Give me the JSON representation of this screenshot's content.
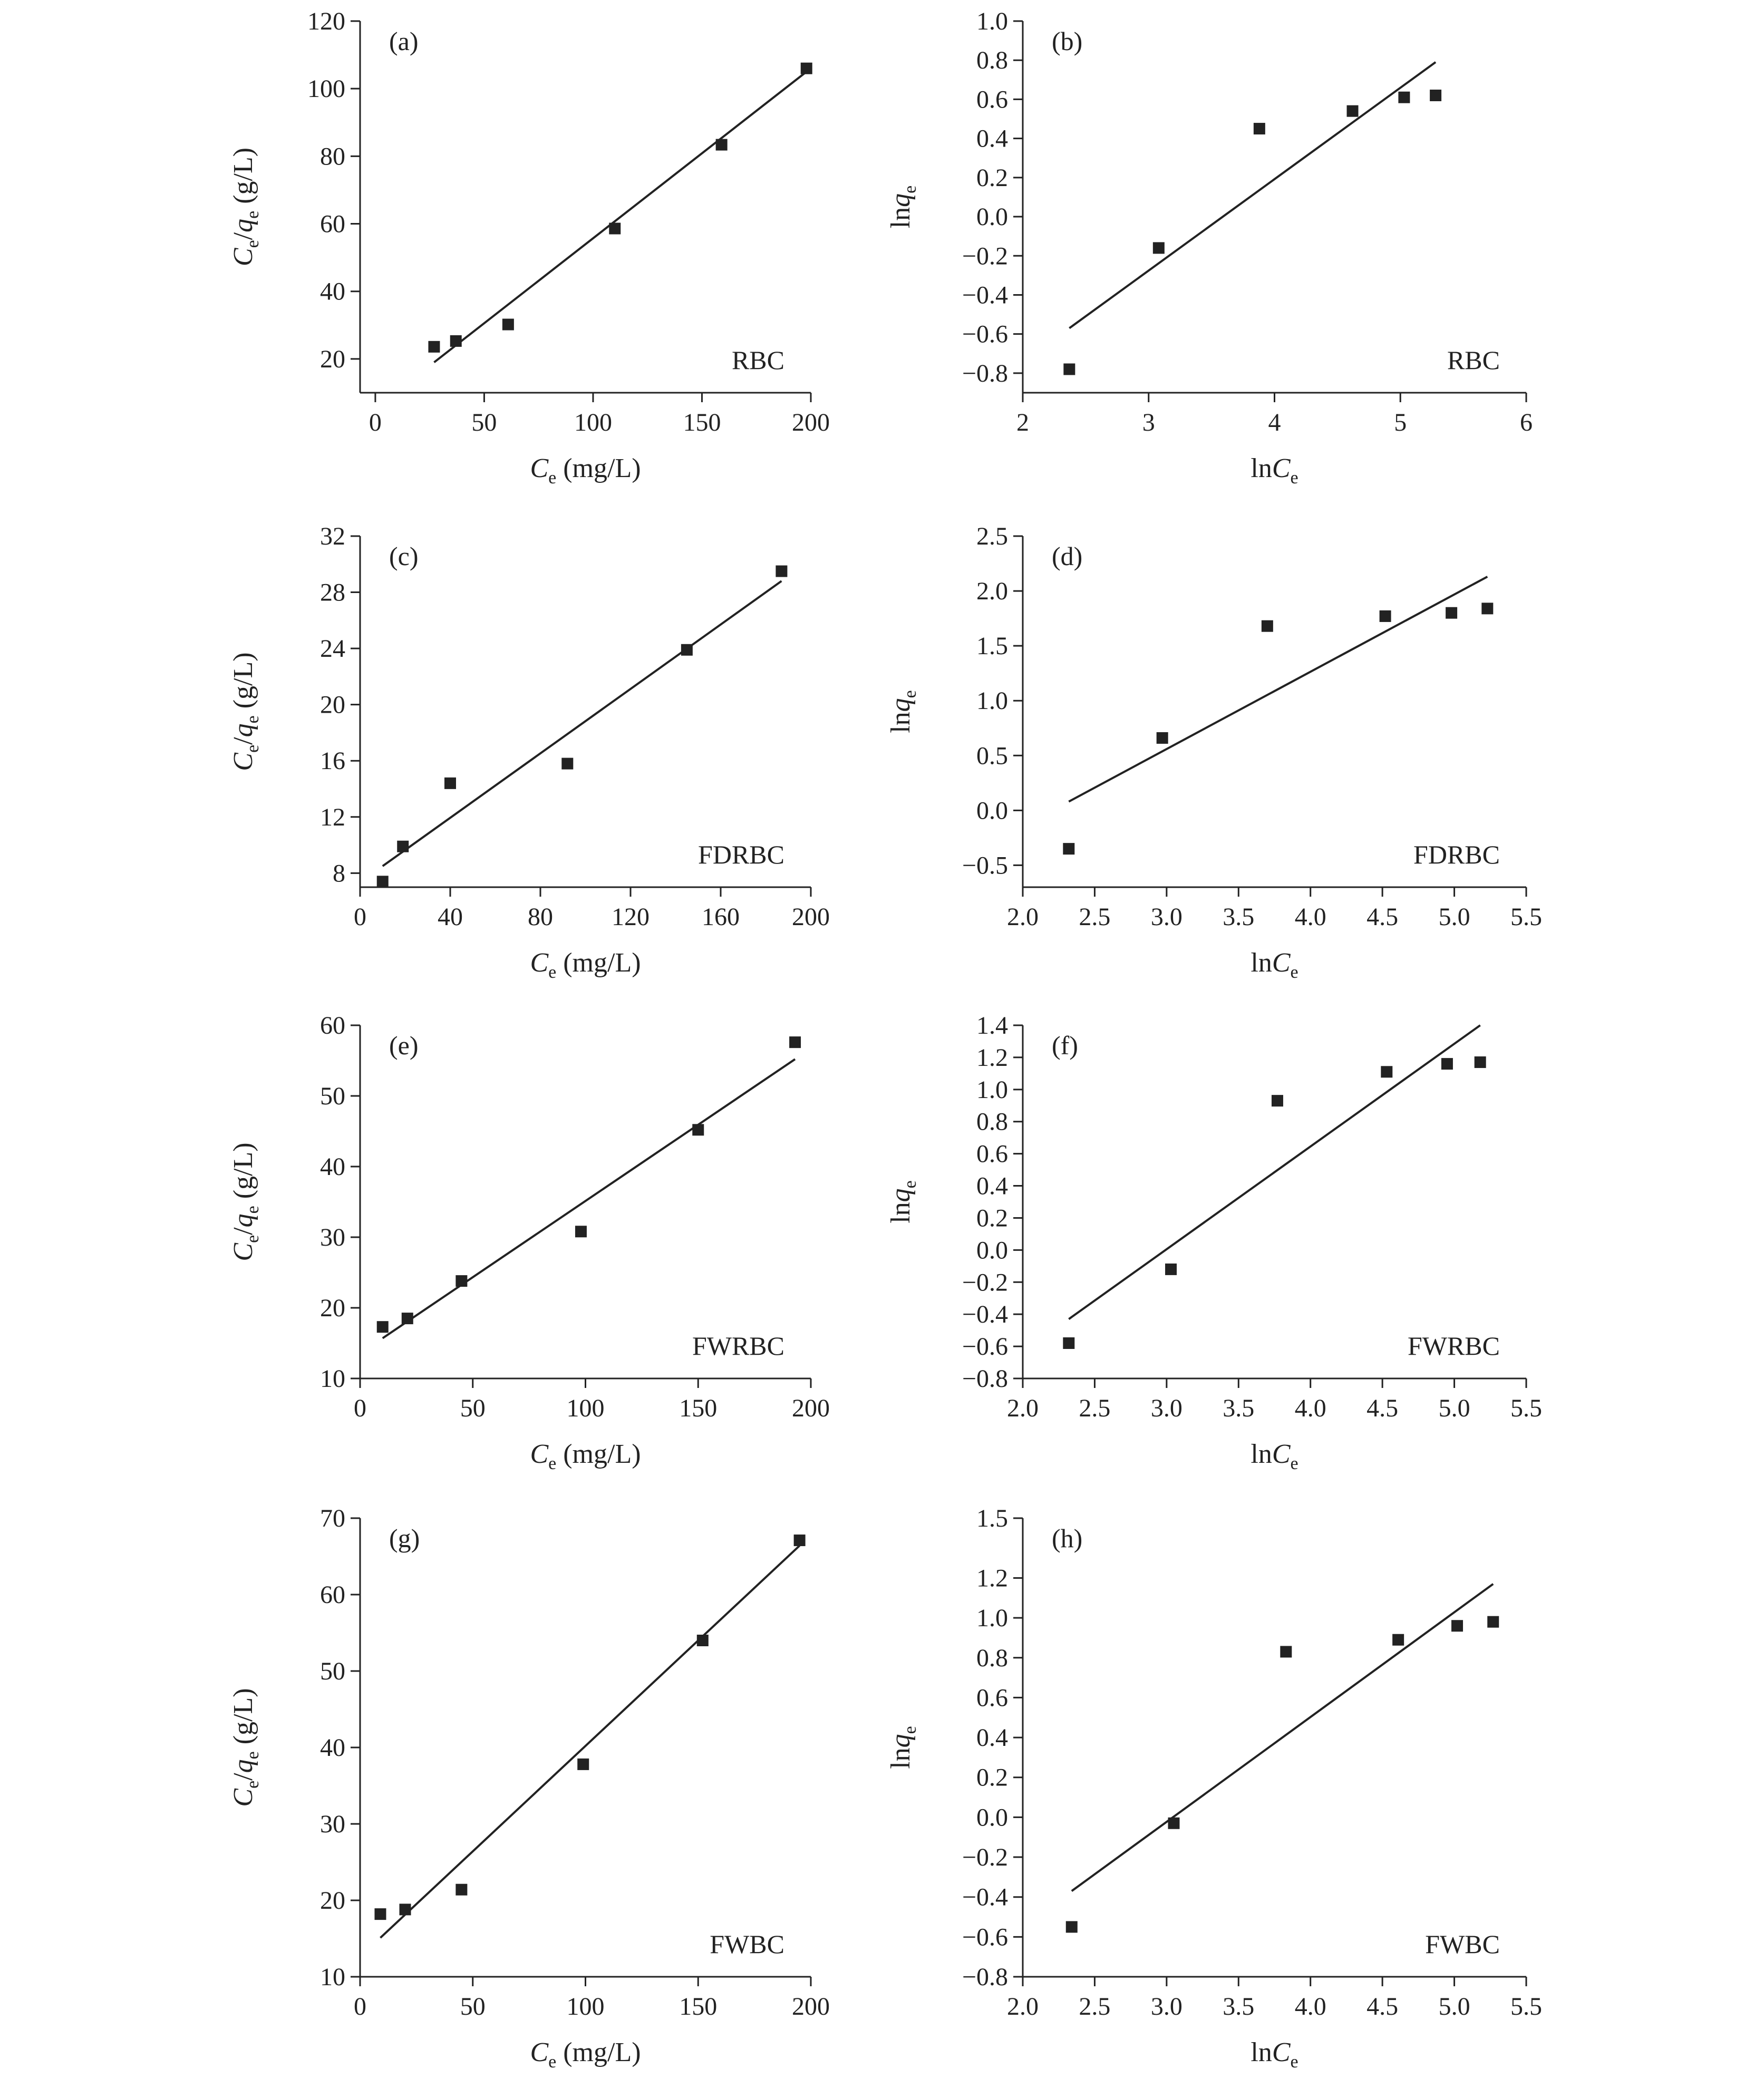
{
  "chart_data": [
    {
      "id": "a",
      "type": "scatter",
      "panel_label": "(a)",
      "sample": "RBC",
      "xlabel": {
        "main": "C",
        "sub": "e",
        "unit": " (mg/L)"
      },
      "ylabel": {
        "main1": "C",
        "sub1": "e",
        "sep": "/",
        "main2": "q",
        "sub2": "e",
        "unit": " (g/L)"
      },
      "xlim": [
        -7,
        200
      ],
      "ylim": [
        10,
        120
      ],
      "xticks": [
        0,
        50,
        100,
        150,
        200
      ],
      "yticks": [
        20,
        40,
        60,
        80,
        100,
        120
      ],
      "tick_decimals": 0,
      "points": [
        [
          27,
          23.6
        ],
        [
          37,
          25.3
        ],
        [
          61,
          30.2
        ],
        [
          110,
          58.6
        ],
        [
          159,
          83.4
        ],
        [
          198,
          106
        ]
      ],
      "fit": [
        [
          27,
          19
        ],
        [
          198,
          105
        ]
      ]
    },
    {
      "id": "b",
      "type": "scatter",
      "panel_label": "(b)",
      "sample": "RBC",
      "xlabel": {
        "main": "ln",
        "main_italic": "C",
        "sub": "e",
        "unit": ""
      },
      "ylabel": {
        "main": "ln",
        "main_italic": "q",
        "sub": "e"
      },
      "xlim": [
        2,
        6
      ],
      "ylim": [
        -0.9,
        1.0
      ],
      "xticks": [
        2,
        3,
        4,
        5,
        6
      ],
      "yticks": [
        -0.8,
        -0.6,
        -0.4,
        -0.2,
        0.0,
        0.2,
        0.4,
        0.6,
        0.8,
        1.0
      ],
      "tick_decimals": 1,
      "x_tick_decimals": 0,
      "points": [
        [
          2.37,
          -0.78
        ],
        [
          3.08,
          -0.16
        ],
        [
          3.88,
          0.45
        ],
        [
          4.62,
          0.54
        ],
        [
          5.03,
          0.61
        ],
        [
          5.28,
          0.62
        ]
      ],
      "fit": [
        [
          2.37,
          -0.57
        ],
        [
          5.28,
          0.79
        ]
      ]
    },
    {
      "id": "c",
      "type": "scatter",
      "panel_label": "(c)",
      "sample": "FDRBC",
      "xlabel": {
        "main": "C",
        "sub": "e",
        "unit": " (mg/L)"
      },
      "ylabel": {
        "main1": "C",
        "sub1": "e",
        "sep": "/",
        "main2": "q",
        "sub2": "e",
        "unit": " (g/L)"
      },
      "xlim": [
        0,
        200
      ],
      "ylim": [
        7,
        32
      ],
      "xticks": [
        0,
        40,
        80,
        120,
        160,
        200
      ],
      "yticks": [
        8,
        12,
        16,
        20,
        24,
        28,
        32
      ],
      "tick_decimals": 0,
      "points": [
        [
          10,
          7.4
        ],
        [
          19,
          9.9
        ],
        [
          40,
          14.4
        ],
        [
          92,
          15.8
        ],
        [
          145,
          23.9
        ],
        [
          187,
          29.5
        ]
      ],
      "fit": [
        [
          10,
          8.5
        ],
        [
          187,
          28.8
        ]
      ]
    },
    {
      "id": "d",
      "type": "scatter",
      "panel_label": "(d)",
      "sample": "FDRBC",
      "xlabel": {
        "main": "ln",
        "main_italic": "C",
        "sub": "e",
        "unit": ""
      },
      "ylabel": {
        "main": "ln",
        "main_italic": "q",
        "sub": "e"
      },
      "xlim": [
        2.0,
        5.5
      ],
      "ylim": [
        -0.7,
        2.5
      ],
      "xticks": [
        2.0,
        2.5,
        3.0,
        3.5,
        4.0,
        4.5,
        5.0,
        5.5
      ],
      "yticks": [
        -0.5,
        0.0,
        0.5,
        1.0,
        1.5,
        2.0,
        2.5
      ],
      "tick_decimals": 1,
      "points": [
        [
          2.32,
          -0.35
        ],
        [
          2.97,
          0.66
        ],
        [
          3.7,
          1.68
        ],
        [
          4.52,
          1.77
        ],
        [
          4.98,
          1.8
        ],
        [
          5.23,
          1.84
        ]
      ],
      "fit": [
        [
          2.32,
          0.08
        ],
        [
          5.23,
          2.13
        ]
      ]
    },
    {
      "id": "e",
      "type": "scatter",
      "panel_label": "(e)",
      "sample": "FWRBC",
      "xlabel": {
        "main": "C",
        "sub": "e",
        "unit": " (mg/L)"
      },
      "ylabel": {
        "main1": "C",
        "sub1": "e",
        "sep": "/",
        "main2": "q",
        "sub2": "e",
        "unit": " (g/L)"
      },
      "xlim": [
        0,
        200
      ],
      "ylim": [
        10,
        60
      ],
      "xticks": [
        0,
        50,
        100,
        150,
        200
      ],
      "yticks": [
        10,
        20,
        30,
        40,
        50,
        60
      ],
      "tick_decimals": 0,
      "points": [
        [
          10,
          17.3
        ],
        [
          21,
          18.5
        ],
        [
          45,
          23.8
        ],
        [
          98,
          30.8
        ],
        [
          150,
          45.2
        ],
        [
          193,
          57.6
        ]
      ],
      "fit": [
        [
          10,
          15.7
        ],
        [
          193,
          55.2
        ]
      ]
    },
    {
      "id": "f",
      "type": "scatter",
      "panel_label": "(f)",
      "sample": "FWRBC",
      "xlabel": {
        "main": "ln",
        "main_italic": "C",
        "sub": "e",
        "unit": ""
      },
      "ylabel": {
        "main": "ln",
        "main_italic": "q",
        "sub": "e"
      },
      "xlim": [
        2.0,
        5.5
      ],
      "ylim": [
        -0.8,
        1.4
      ],
      "xticks": [
        2.0,
        2.5,
        3.0,
        3.5,
        4.0,
        4.5,
        5.0,
        5.5
      ],
      "yticks": [
        -0.8,
        -0.6,
        -0.4,
        -0.2,
        0.0,
        0.2,
        0.4,
        0.6,
        0.8,
        1.0,
        1.2,
        1.4
      ],
      "tick_decimals": 1,
      "points": [
        [
          2.32,
          -0.58
        ],
        [
          3.03,
          -0.12
        ],
        [
          3.77,
          0.93
        ],
        [
          4.53,
          1.11
        ],
        [
          4.95,
          1.16
        ],
        [
          5.18,
          1.17
        ]
      ],
      "fit": [
        [
          2.32,
          -0.43
        ],
        [
          5.18,
          1.4
        ]
      ]
    },
    {
      "id": "g",
      "type": "scatter",
      "panel_label": "(g)",
      "sample": "FWBC",
      "xlabel": {
        "main": "C",
        "sub": "e",
        "unit": " (mg/L)"
      },
      "ylabel": {
        "main1": "C",
        "sub1": "e",
        "sep": "/",
        "main2": "q",
        "sub2": "e",
        "unit": " (g/L)"
      },
      "xlim": [
        0,
        200
      ],
      "ylim": [
        10,
        70
      ],
      "xticks": [
        0,
        50,
        100,
        150,
        200
      ],
      "yticks": [
        10,
        20,
        30,
        40,
        50,
        60,
        70
      ],
      "tick_decimals": 0,
      "points": [
        [
          9,
          18.2
        ],
        [
          20,
          18.8
        ],
        [
          45,
          21.4
        ],
        [
          99,
          37.8
        ],
        [
          152,
          54.0
        ],
        [
          195,
          67.1
        ]
      ],
      "fit": [
        [
          9,
          15.1
        ],
        [
          195,
          66.4
        ]
      ]
    },
    {
      "id": "h",
      "type": "scatter",
      "panel_label": "(h)",
      "sample": "FWBC",
      "xlabel": {
        "main": "ln",
        "main_italic": "C",
        "sub": "e",
        "unit": ""
      },
      "ylabel": {
        "main": "ln",
        "main_italic": "q",
        "sub": "e"
      },
      "xlim": [
        2.0,
        5.5
      ],
      "ylim": [
        -0.8,
        1.5
      ],
      "xticks": [
        2.0,
        2.5,
        3.0,
        3.5,
        4.0,
        4.5,
        5.0,
        5.5
      ],
      "yticks": [
        -0.8,
        -0.6,
        -0.4,
        -0.2,
        0.0,
        0.2,
        0.4,
        0.6,
        0.8,
        1.0,
        1.2,
        1.5
      ],
      "tick_decimals": 1,
      "points": [
        [
          2.34,
          -0.55
        ],
        [
          3.05,
          -0.03
        ],
        [
          3.83,
          0.83
        ],
        [
          4.61,
          0.89
        ],
        [
          5.02,
          0.96
        ],
        [
          5.27,
          0.98
        ]
      ],
      "fit": [
        [
          2.34,
          -0.37
        ],
        [
          5.27,
          1.17
        ]
      ]
    }
  ]
}
